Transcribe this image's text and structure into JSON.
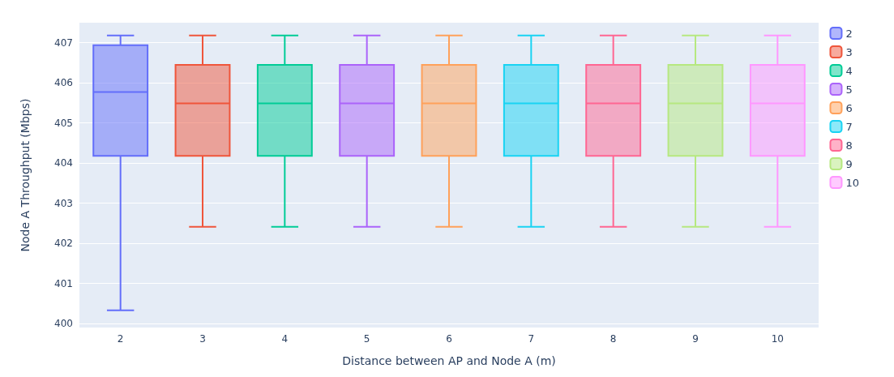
{
  "chart_data": {
    "type": "box",
    "xlabel": "Distance between AP and Node A (m)",
    "ylabel": "Node A Throughput (Mbps)",
    "categories": [
      "2",
      "3",
      "4",
      "5",
      "6",
      "7",
      "8",
      "9",
      "10"
    ],
    "ylim": [
      399.9,
      407.5
    ],
    "yticks": [
      400,
      401,
      402,
      403,
      404,
      405,
      406,
      407
    ],
    "grid": "y",
    "legend": "top right",
    "series": [
      {
        "name": "2",
        "color": "#636efa",
        "x": [
          "2"
        ],
        "boxes": [
          {
            "low": 400.33,
            "q1": 404.18,
            "median": 405.77,
            "q3": 406.94,
            "high": 407.18
          }
        ]
      },
      {
        "name": "3",
        "color": "#ef553b",
        "x": [
          "3"
        ],
        "boxes": [
          {
            "low": 402.41,
            "q1": 404.18,
            "median": 405.49,
            "q3": 406.45,
            "high": 407.18
          }
        ]
      },
      {
        "name": "4",
        "color": "#00cc96",
        "x": [
          "4"
        ],
        "boxes": [
          {
            "low": 402.41,
            "q1": 404.18,
            "median": 405.49,
            "q3": 406.45,
            "high": 407.18
          }
        ]
      },
      {
        "name": "5",
        "color": "#ab63fa",
        "x": [
          "5"
        ],
        "boxes": [
          {
            "low": 402.41,
            "q1": 404.18,
            "median": 405.49,
            "q3": 406.45,
            "high": 407.18
          }
        ]
      },
      {
        "name": "6",
        "color": "#ffa15a",
        "x": [
          "6"
        ],
        "boxes": [
          {
            "low": 402.41,
            "q1": 404.18,
            "median": 405.49,
            "q3": 406.45,
            "high": 407.18
          }
        ]
      },
      {
        "name": "7",
        "color": "#19d3f3",
        "x": [
          "7"
        ],
        "boxes": [
          {
            "low": 402.41,
            "q1": 404.18,
            "median": 405.49,
            "q3": 406.45,
            "high": 407.18
          }
        ]
      },
      {
        "name": "8",
        "color": "#ff6692",
        "x": [
          "8"
        ],
        "boxes": [
          {
            "low": 402.41,
            "q1": 404.18,
            "median": 405.49,
            "q3": 406.45,
            "high": 407.18
          }
        ]
      },
      {
        "name": "9",
        "color": "#b6e880",
        "x": [
          "9"
        ],
        "boxes": [
          {
            "low": 402.41,
            "q1": 404.18,
            "median": 405.49,
            "q3": 406.45,
            "high": 407.18
          }
        ]
      },
      {
        "name": "10",
        "color": "#ff97ff",
        "x": [
          "10"
        ],
        "boxes": [
          {
            "low": 402.41,
            "q1": 404.18,
            "median": 405.49,
            "q3": 406.45,
            "high": 407.18
          }
        ]
      }
    ]
  }
}
